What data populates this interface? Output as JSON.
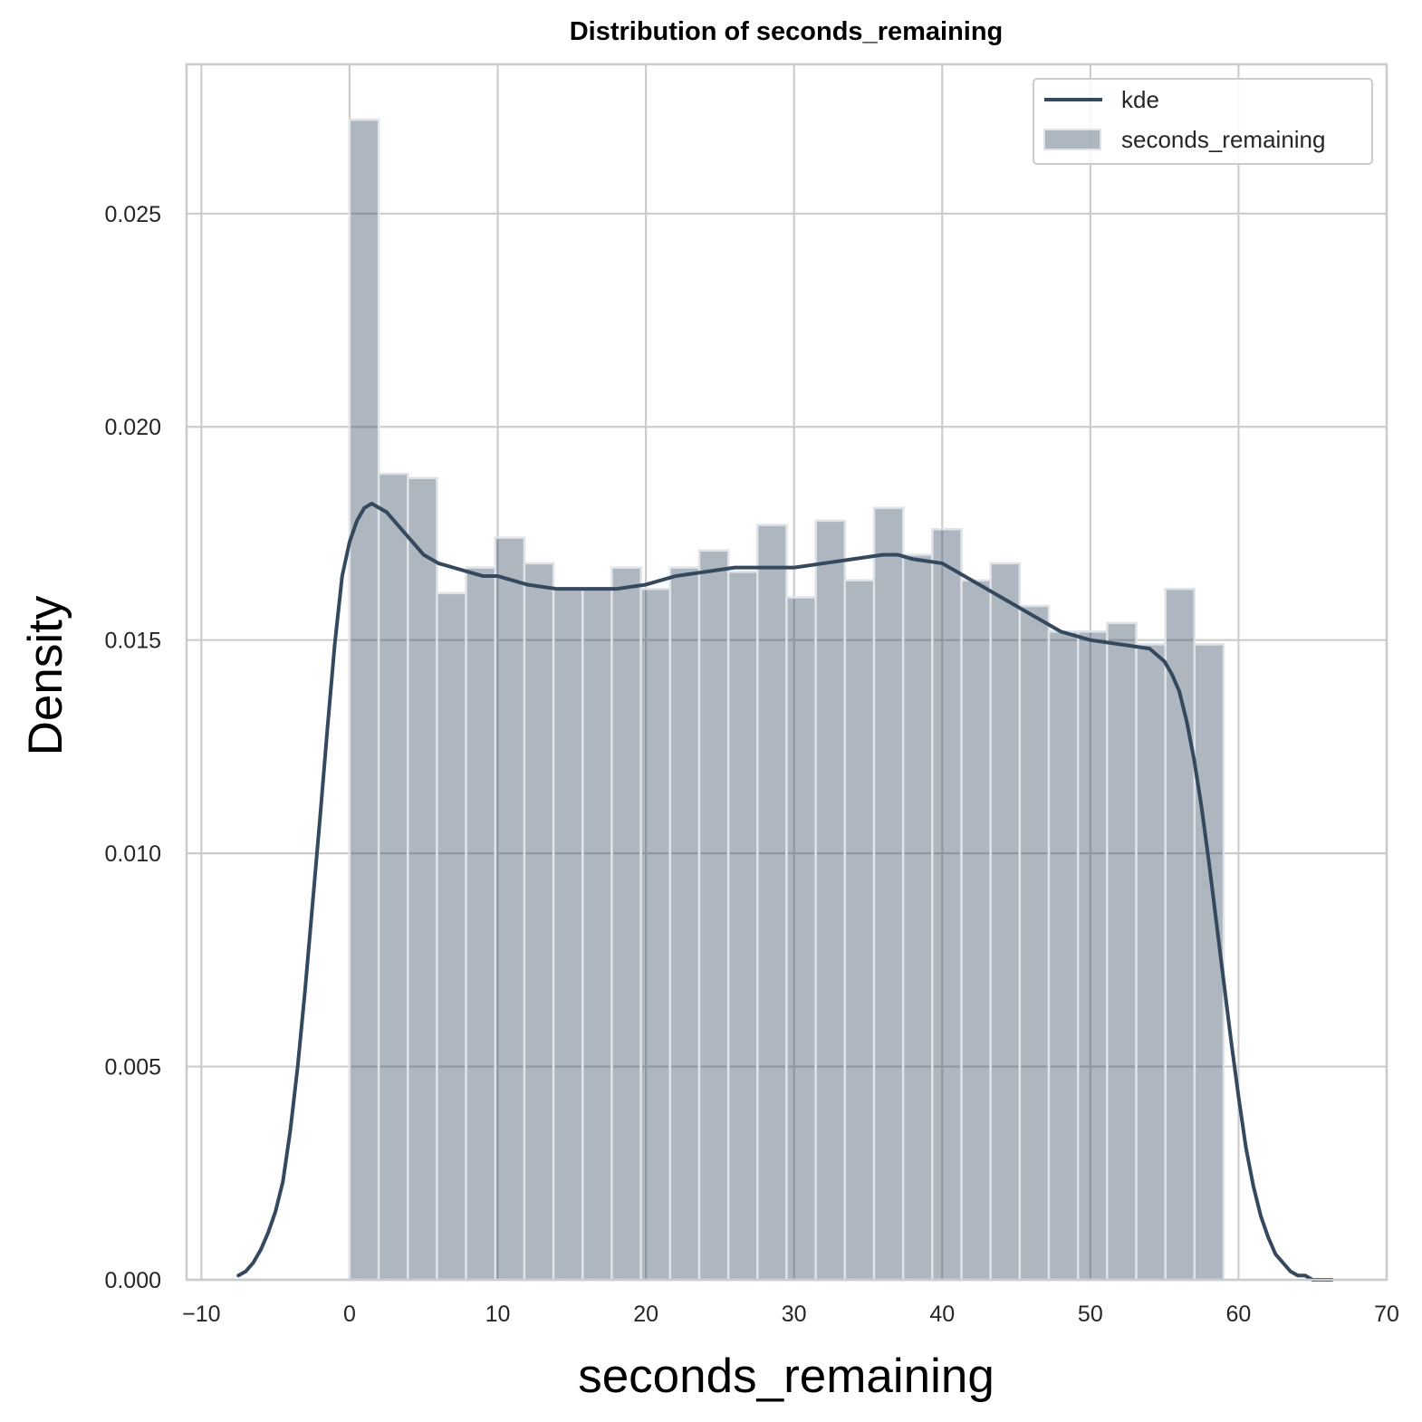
{
  "chart_data": {
    "type": "bar",
    "title": "Distribution of seconds_remaining",
    "xlabel": "seconds_remaining",
    "ylabel": "Density",
    "xlim": [
      -11,
      70
    ],
    "ylim": [
      0,
      0.0285
    ],
    "x_ticks": [
      -10,
      0,
      10,
      20,
      30,
      40,
      50,
      60,
      70
    ],
    "x_tick_labels": [
      "−10",
      "0",
      "10",
      "20",
      "30",
      "40",
      "50",
      "60",
      "70"
    ],
    "y_ticks": [
      0,
      0.005,
      0.01,
      0.015,
      0.02,
      0.025
    ],
    "y_tick_labels": [
      "0.000",
      "0.005",
      "0.010",
      "0.015",
      "0.020",
      "0.025"
    ],
    "grid": true,
    "legend_position": "top-right",
    "colors": {
      "kde": "#34495e",
      "bars": "#34495e",
      "bar_edge": "#dfe3e8",
      "grid": "#cccccc"
    },
    "histogram": {
      "name": "seconds_remaining",
      "bin_edges": [
        0,
        1.967,
        3.933,
        5.9,
        7.867,
        9.833,
        11.8,
        13.767,
        15.733,
        17.7,
        19.667,
        21.633,
        23.6,
        25.567,
        27.533,
        29.5,
        31.467,
        33.433,
        35.4,
        37.367,
        39.333,
        41.3,
        43.267,
        45.233,
        47.2,
        49.167,
        51.133,
        53.1,
        55.067,
        57.033,
        59
      ],
      "values": [
        0.0272,
        0.0189,
        0.0188,
        0.0161,
        0.0167,
        0.0174,
        0.0168,
        0.0162,
        0.0162,
        0.0167,
        0.0162,
        0.0167,
        0.0171,
        0.0166,
        0.0177,
        0.016,
        0.0178,
        0.0164,
        0.0181,
        0.017,
        0.0176,
        0.0164,
        0.0168,
        0.0158,
        0.0152,
        0.0152,
        0.0154,
        0.0149,
        0.0162,
        0.0149
      ]
    },
    "kde": {
      "name": "kde",
      "x": [
        -7.5,
        -7,
        -6.5,
        -6,
        -5.5,
        -5,
        -4.5,
        -4,
        -3.5,
        -3,
        -2.5,
        -2,
        -1.5,
        -1,
        -0.5,
        0,
        0.5,
        1,
        1.5,
        2,
        2.5,
        3,
        3.5,
        4,
        4.5,
        5,
        6,
        7,
        8,
        9,
        10,
        12,
        14,
        16,
        18,
        20,
        22,
        24,
        26,
        28,
        30,
        32,
        34,
        36,
        37,
        38,
        40,
        42,
        44,
        46,
        48,
        50,
        52,
        54,
        55,
        55.5,
        56,
        56.5,
        57,
        57.5,
        58,
        58.5,
        59,
        59.5,
        60,
        60.5,
        61,
        61.5,
        62,
        62.5,
        63,
        63.5,
        64,
        64.5,
        65,
        65.5,
        66,
        66.3
      ],
      "y": [
        0.0001,
        0.0002,
        0.0004,
        0.0007,
        0.0011,
        0.0016,
        0.0023,
        0.0035,
        0.005,
        0.0068,
        0.0088,
        0.0108,
        0.0129,
        0.0149,
        0.0165,
        0.0173,
        0.0178,
        0.0181,
        0.0182,
        0.0181,
        0.018,
        0.0178,
        0.0176,
        0.0174,
        0.0172,
        0.017,
        0.0168,
        0.0167,
        0.0166,
        0.0165,
        0.0165,
        0.0163,
        0.0162,
        0.0162,
        0.0162,
        0.0163,
        0.0165,
        0.0166,
        0.0167,
        0.0167,
        0.0167,
        0.0168,
        0.0169,
        0.017,
        0.017,
        0.0169,
        0.0168,
        0.0164,
        0.016,
        0.0156,
        0.0152,
        0.015,
        0.0149,
        0.0148,
        0.0145,
        0.0142,
        0.0138,
        0.0131,
        0.0122,
        0.0111,
        0.0098,
        0.0084,
        0.007,
        0.0056,
        0.0043,
        0.0031,
        0.0022,
        0.0015,
        0.001,
        0.0006,
        0.0004,
        0.0002,
        0.0001,
        0.0001,
        0,
        0,
        0,
        0
      ]
    }
  }
}
